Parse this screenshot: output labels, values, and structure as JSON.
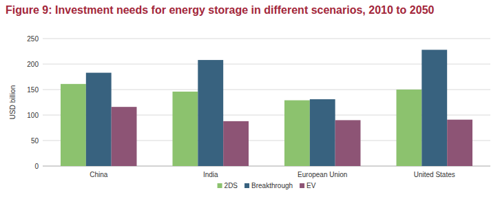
{
  "chart_data": {
    "type": "bar",
    "title": "Figure 9: Investment needs for energy storage in different scenarios, 2010 to 2050",
    "y_label": "USD billion",
    "categories": [
      "China",
      "India",
      "European Union",
      "United States"
    ],
    "series": [
      {
        "name": "2DS",
        "color": "#8cc26e",
        "values": [
          161,
          146,
          129,
          150
        ]
      },
      {
        "name": "Breakthrough",
        "color": "#38627f",
        "values": [
          183,
          208,
          131,
          228
        ]
      },
      {
        "name": "EV",
        "color": "#8d5475",
        "values": [
          116,
          88,
          90,
          91
        ]
      }
    ],
    "ylim": [
      0,
      250
    ],
    "yticks": [
      0,
      50,
      100,
      150,
      200,
      250
    ],
    "grid": true,
    "legend": "bottom"
  }
}
